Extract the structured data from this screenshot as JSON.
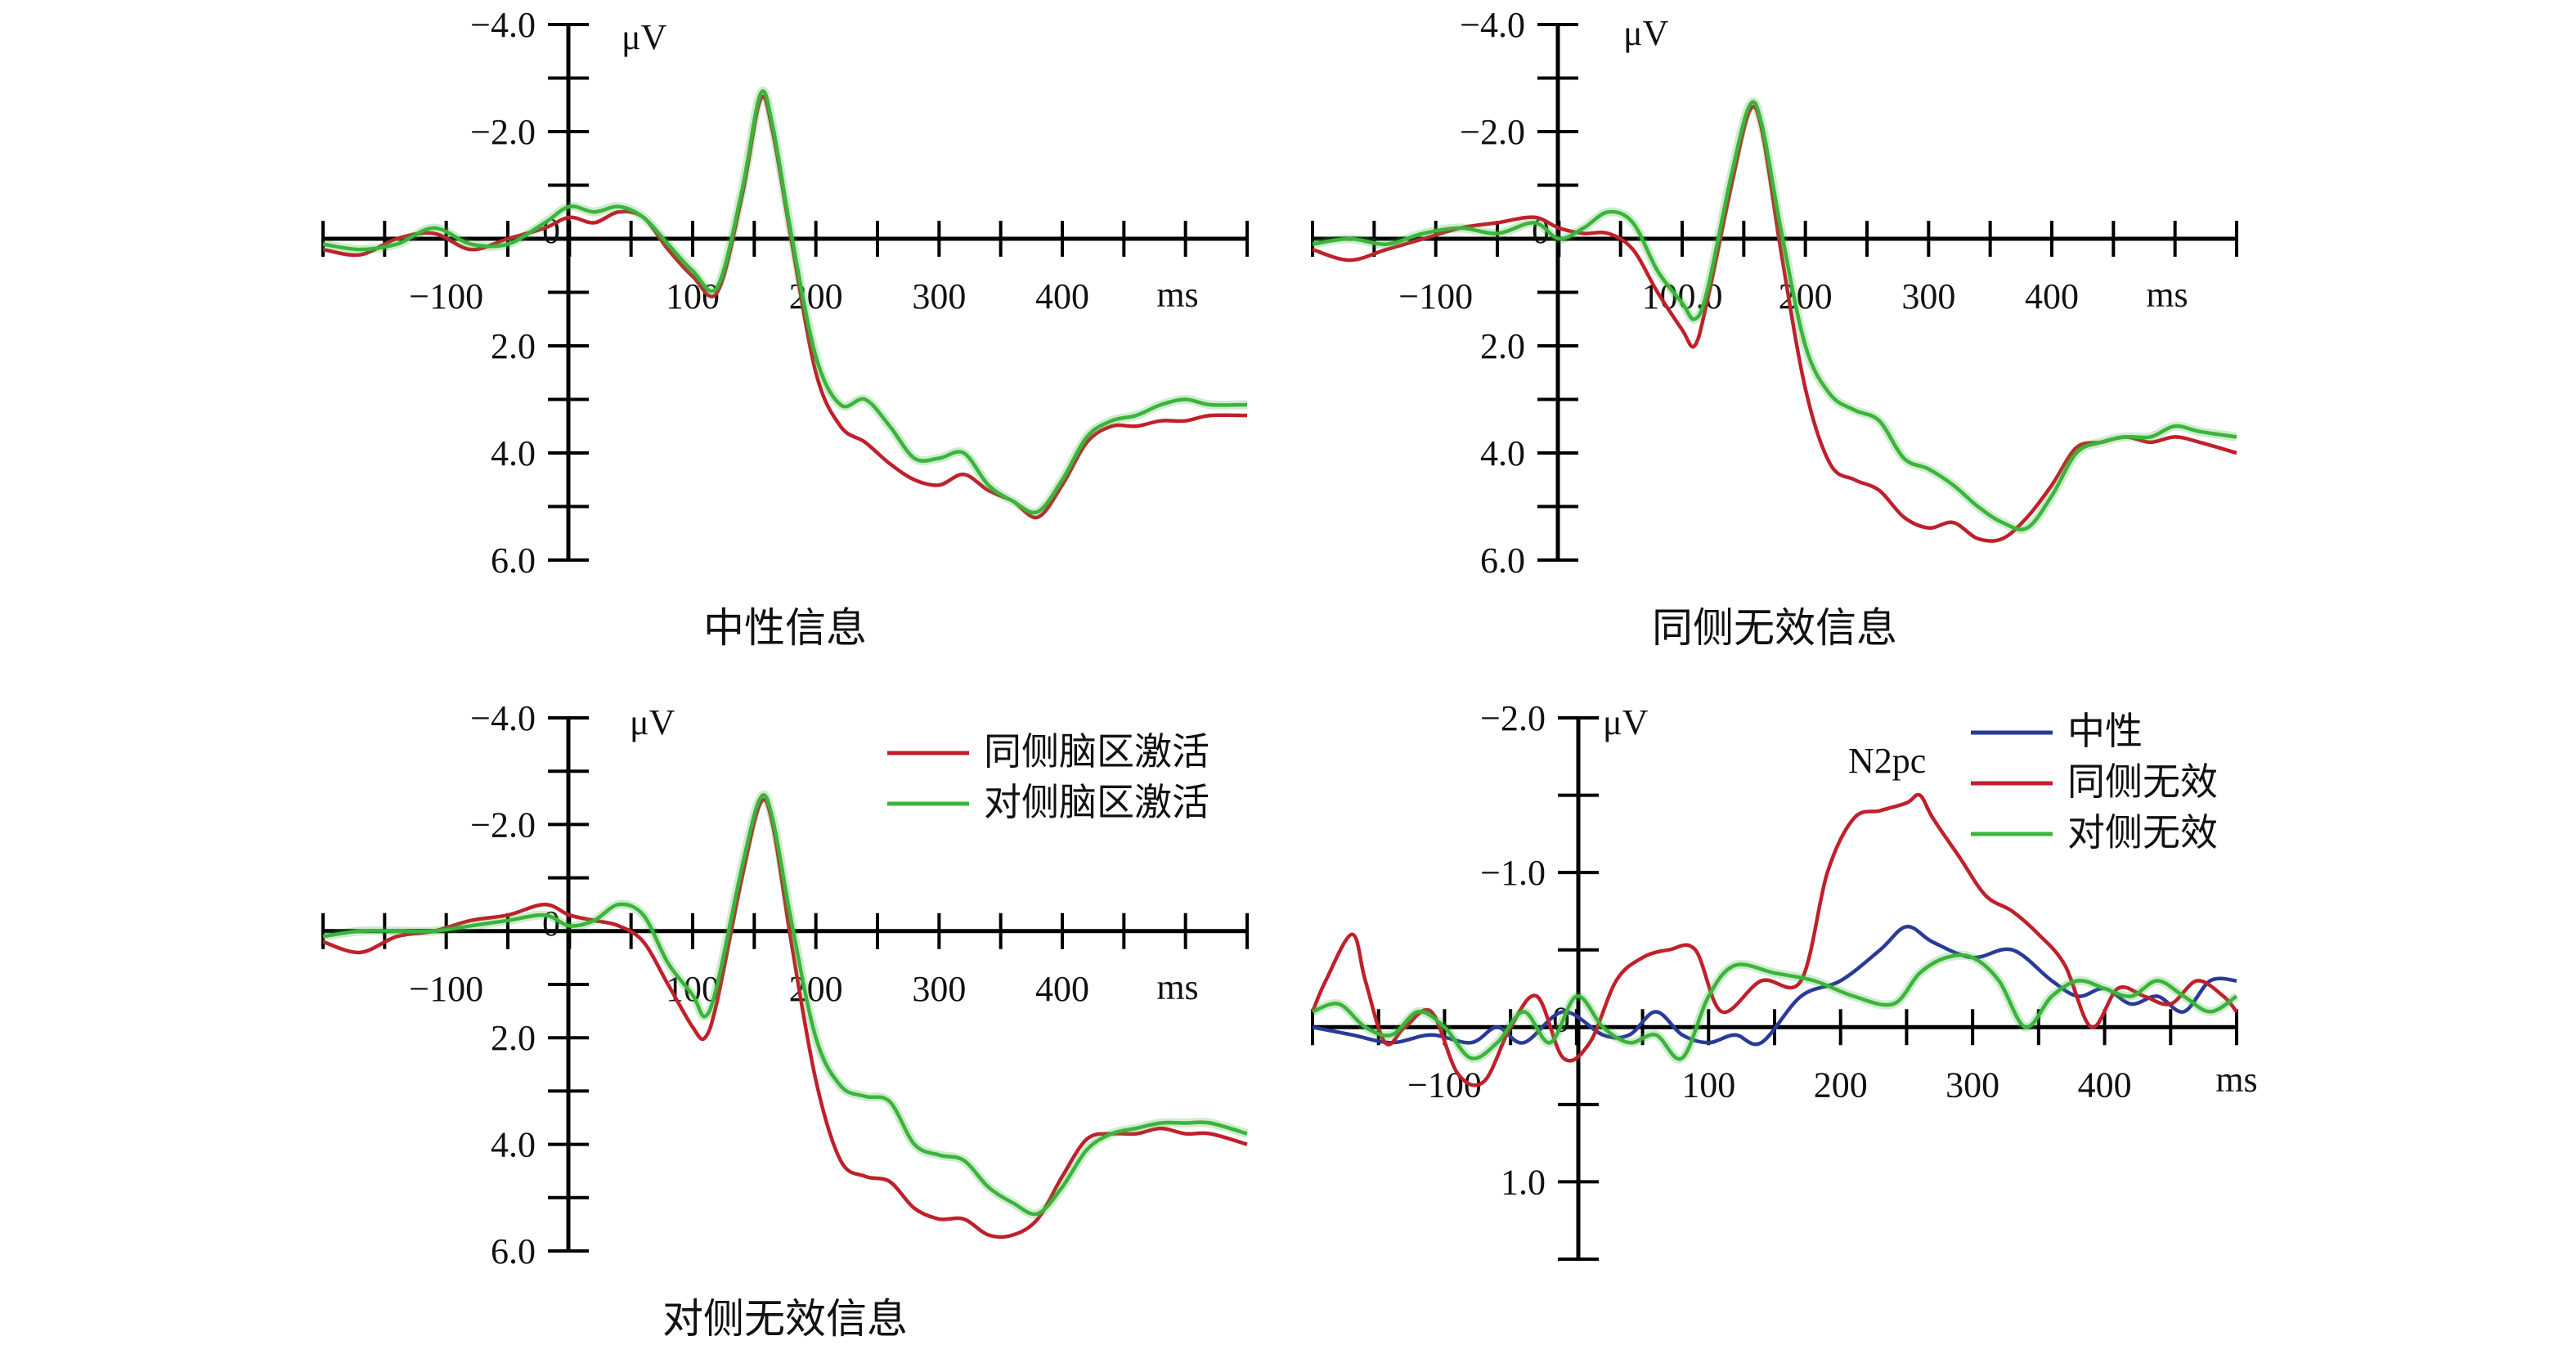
{
  "colors": {
    "ipsi": "#c0202a",
    "contra": "#3cb43c",
    "neutral": "#2a3a9a",
    "axis": "#000000"
  },
  "chart_data": [
    {
      "type": "line",
      "caption": "中性信息",
      "xunit": "ms",
      "yunit": "μV",
      "xlim": [
        -200,
        550
      ],
      "ylim": [
        -4.0,
        6.0
      ],
      "y_inverted": true,
      "xticks": [
        -100,
        100,
        200,
        300,
        400
      ],
      "xtick_labels": [
        "−100",
        "100",
        "200",
        "300",
        "400"
      ],
      "yticks": [
        -4.0,
        -2.0,
        0,
        2.0,
        4.0,
        6.0
      ],
      "ytick_labels": [
        "−4.0",
        "−2.0",
        "0",
        "2.0",
        "4.0",
        "6.0"
      ],
      "legend": null,
      "series": [
        {
          "color_key": "ipsi",
          "x": [
            -200,
            -170,
            -140,
            -110,
            -80,
            -50,
            -20,
            0,
            20,
            40,
            60,
            80,
            100,
            120,
            140,
            155,
            165,
            180,
            200,
            220,
            240,
            260,
            280,
            300,
            320,
            340,
            360,
            380,
            400,
            420,
            440,
            460,
            480,
            500,
            520,
            550
          ],
          "y": [
            0.2,
            0.3,
            0.0,
            -0.1,
            0.2,
            0.0,
            -0.2,
            -0.4,
            -0.3,
            -0.5,
            -0.4,
            0.2,
            0.7,
            1.0,
            -0.8,
            -2.6,
            -2.0,
            0.0,
            2.5,
            3.5,
            3.8,
            4.2,
            4.5,
            4.6,
            4.4,
            4.7,
            4.9,
            5.2,
            4.6,
            3.8,
            3.5,
            3.5,
            3.4,
            3.4,
            3.3,
            3.3
          ]
        },
        {
          "color_key": "contra",
          "x": [
            -200,
            -170,
            -140,
            -110,
            -80,
            -50,
            -20,
            0,
            20,
            40,
            60,
            80,
            100,
            120,
            140,
            155,
            165,
            180,
            200,
            220,
            240,
            260,
            280,
            300,
            320,
            340,
            360,
            380,
            400,
            420,
            440,
            460,
            480,
            500,
            520,
            550
          ],
          "y": [
            0.1,
            0.2,
            0.1,
            -0.2,
            0.1,
            0.1,
            -0.3,
            -0.6,
            -0.5,
            -0.6,
            -0.4,
            0.1,
            0.6,
            0.9,
            -0.9,
            -2.7,
            -2.1,
            -0.1,
            2.2,
            3.1,
            3.0,
            3.5,
            4.1,
            4.1,
            4.0,
            4.6,
            4.9,
            5.1,
            4.5,
            3.7,
            3.4,
            3.3,
            3.1,
            3.0,
            3.1,
            3.1
          ]
        }
      ]
    },
    {
      "type": "line",
      "caption": "同侧无效信息",
      "xunit": "ms",
      "yunit": "μV",
      "xlim": [
        -200,
        550
      ],
      "ylim": [
        -4.0,
        6.0
      ],
      "y_inverted": true,
      "xticks": [
        -100,
        100,
        200,
        300,
        400
      ],
      "xtick_labels": [
        "−100",
        "100.0",
        "200",
        "300",
        "400"
      ],
      "yticks": [
        -4.0,
        -2.0,
        0,
        2.0,
        4.0,
        6.0
      ],
      "ytick_labels": [
        "−4.0",
        "−2.0",
        "0",
        "2.0",
        "4.0",
        "6.0"
      ],
      "legend": null,
      "series": [
        {
          "color_key": "ipsi",
          "x": [
            -200,
            -170,
            -140,
            -110,
            -80,
            -50,
            -20,
            0,
            20,
            40,
            60,
            80,
            100,
            110,
            120,
            140,
            155,
            165,
            180,
            200,
            220,
            240,
            260,
            280,
            300,
            320,
            340,
            360,
            380,
            400,
            420,
            440,
            460,
            480,
            500,
            520,
            550
          ],
          "y": [
            0.2,
            0.4,
            0.2,
            0.0,
            -0.2,
            -0.3,
            -0.4,
            -0.2,
            -0.1,
            -0.1,
            0.2,
            1.0,
            1.7,
            2.0,
            1.2,
            -1.0,
            -2.4,
            -2.0,
            0.2,
            2.8,
            4.2,
            4.5,
            4.7,
            5.2,
            5.4,
            5.3,
            5.6,
            5.6,
            5.2,
            4.6,
            3.9,
            3.8,
            3.7,
            3.8,
            3.7,
            3.8,
            4.0
          ]
        },
        {
          "color_key": "contra",
          "x": [
            -200,
            -170,
            -140,
            -110,
            -80,
            -50,
            -20,
            0,
            20,
            40,
            60,
            80,
            100,
            110,
            120,
            140,
            155,
            165,
            180,
            200,
            220,
            240,
            260,
            280,
            300,
            320,
            340,
            360,
            380,
            400,
            420,
            440,
            460,
            480,
            500,
            520,
            550
          ],
          "y": [
            0.1,
            0.0,
            0.1,
            -0.1,
            -0.2,
            -0.1,
            -0.3,
            0.0,
            -0.2,
            -0.5,
            -0.3,
            0.6,
            1.2,
            1.5,
            1.0,
            -1.2,
            -2.5,
            -2.1,
            -0.2,
            2.0,
            2.9,
            3.2,
            3.4,
            4.1,
            4.3,
            4.6,
            5.0,
            5.3,
            5.4,
            4.8,
            4.0,
            3.8,
            3.7,
            3.7,
            3.5,
            3.6,
            3.7
          ]
        }
      ]
    },
    {
      "type": "line",
      "caption": "对侧无效信息",
      "xunit": "ms",
      "yunit": "μV",
      "xlim": [
        -200,
        550
      ],
      "ylim": [
        -4.0,
        6.0
      ],
      "y_inverted": true,
      "xticks": [
        -100,
        100,
        200,
        300,
        400
      ],
      "xtick_labels": [
        "−100",
        "100",
        "200",
        "300",
        "400"
      ],
      "yticks": [
        -4.0,
        -2.0,
        0,
        2.0,
        4.0,
        6.0
      ],
      "ytick_labels": [
        "−4.0",
        "−2.0",
        "0",
        "2.0",
        "4.0",
        "6.0"
      ],
      "legend": {
        "entries": [
          {
            "label": "同侧脑区激活",
            "color_key": "ipsi"
          },
          {
            "label": "对侧脑区激活",
            "color_key": "contra"
          }
        ]
      },
      "series": [
        {
          "color_key": "ipsi",
          "x": [
            -200,
            -170,
            -140,
            -110,
            -80,
            -50,
            -20,
            0,
            20,
            40,
            60,
            80,
            100,
            110,
            120,
            140,
            155,
            165,
            180,
            200,
            220,
            240,
            260,
            280,
            300,
            320,
            340,
            360,
            380,
            400,
            420,
            440,
            460,
            480,
            500,
            520,
            550
          ],
          "y": [
            0.2,
            0.4,
            0.1,
            0.0,
            -0.2,
            -0.3,
            -0.5,
            -0.3,
            -0.2,
            -0.1,
            0.2,
            1.0,
            1.8,
            2.0,
            1.3,
            -1.0,
            -2.4,
            -2.0,
            0.2,
            2.8,
            4.3,
            4.6,
            4.7,
            5.2,
            5.4,
            5.4,
            5.7,
            5.7,
            5.4,
            4.6,
            3.9,
            3.8,
            3.8,
            3.7,
            3.8,
            3.8,
            4.0
          ]
        },
        {
          "color_key": "contra",
          "x": [
            -200,
            -170,
            -140,
            -110,
            -80,
            -50,
            -20,
            0,
            20,
            40,
            60,
            80,
            100,
            110,
            120,
            140,
            155,
            165,
            180,
            200,
            220,
            240,
            260,
            280,
            300,
            320,
            340,
            360,
            380,
            400,
            420,
            440,
            460,
            480,
            500,
            520,
            550
          ],
          "y": [
            0.1,
            0.0,
            0.0,
            0.0,
            -0.1,
            -0.2,
            -0.3,
            -0.1,
            -0.2,
            -0.5,
            -0.3,
            0.6,
            1.2,
            1.6,
            1.0,
            -1.2,
            -2.5,
            -2.1,
            -0.2,
            2.0,
            2.9,
            3.1,
            3.2,
            4.0,
            4.2,
            4.3,
            4.8,
            5.1,
            5.3,
            4.8,
            4.1,
            3.8,
            3.7,
            3.6,
            3.6,
            3.6,
            3.8
          ]
        }
      ]
    },
    {
      "type": "line",
      "caption": "",
      "annotation": "N2pc",
      "xunit": "ms",
      "yunit": "μV",
      "xlim": [
        -200,
        500
      ],
      "ylim": [
        -2.0,
        1.5
      ],
      "y_inverted": true,
      "xticks": [
        -100,
        100,
        200,
        300,
        400
      ],
      "xtick_labels": [
        "−100",
        "100",
        "200",
        "300",
        "400"
      ],
      "yticks": [
        -2.0,
        -1.0,
        0,
        1.0
      ],
      "ytick_labels": [
        "−2.0",
        "−1.0",
        "0",
        "1.0"
      ],
      "legend": {
        "entries": [
          {
            "label": "中性",
            "color_key": "neutral"
          },
          {
            "label": "同侧无效",
            "color_key": "ipsi"
          },
          {
            "label": "对侧无效",
            "color_key": "contra"
          }
        ]
      },
      "series": [
        {
          "color_key": "neutral",
          "x": [
            -200,
            -170,
            -140,
            -110,
            -80,
            -60,
            -40,
            -10,
            20,
            40,
            60,
            80,
            100,
            120,
            140,
            170,
            200,
            230,
            250,
            270,
            300,
            330,
            360,
            380,
            400,
            420,
            440,
            460,
            480,
            500
          ],
          "y": [
            0.0,
            0.05,
            0.1,
            0.05,
            0.1,
            0.0,
            0.1,
            -0.1,
            0.05,
            0.05,
            -0.1,
            0.05,
            0.1,
            0.05,
            0.1,
            -0.2,
            -0.3,
            -0.5,
            -0.65,
            -0.55,
            -0.45,
            -0.5,
            -0.3,
            -0.2,
            -0.25,
            -0.15,
            -0.2,
            -0.1,
            -0.3,
            -0.3
          ]
        },
        {
          "color_key": "ipsi",
          "x": [
            -200,
            -190,
            -170,
            -160,
            -145,
            -130,
            -110,
            -90,
            -70,
            -50,
            -30,
            -10,
            10,
            30,
            50,
            70,
            90,
            110,
            140,
            170,
            190,
            210,
            230,
            250,
            260,
            270,
            290,
            310,
            330,
            350,
            370,
            390,
            410,
            430,
            450,
            470,
            490,
            500
          ],
          "y": [
            -0.1,
            -0.3,
            -0.6,
            -0.3,
            0.1,
            0.0,
            -0.1,
            0.3,
            0.35,
            0.0,
            -0.2,
            0.2,
            0.1,
            -0.3,
            -0.45,
            -0.5,
            -0.5,
            -0.1,
            -0.3,
            -0.3,
            -1.0,
            -1.35,
            -1.4,
            -1.45,
            -1.5,
            -1.35,
            -1.1,
            -0.85,
            -0.75,
            -0.6,
            -0.4,
            0.0,
            -0.25,
            -0.2,
            -0.15,
            -0.3,
            -0.2,
            -0.1
          ]
        },
        {
          "color_key": "contra",
          "x": [
            -200,
            -180,
            -160,
            -140,
            -120,
            -100,
            -80,
            -60,
            -40,
            -20,
            0,
            20,
            40,
            60,
            80,
            100,
            120,
            150,
            180,
            210,
            240,
            260,
            280,
            300,
            320,
            340,
            360,
            380,
            400,
            420,
            440,
            460,
            480,
            500
          ],
          "y": [
            -0.1,
            -0.15,
            0.0,
            0.05,
            -0.1,
            0.0,
            0.2,
            0.1,
            -0.1,
            0.1,
            -0.2,
            0.0,
            0.1,
            0.05,
            0.2,
            -0.2,
            -0.4,
            -0.35,
            -0.3,
            -0.2,
            -0.15,
            -0.35,
            -0.45,
            -0.45,
            -0.3,
            0.0,
            -0.2,
            -0.3,
            -0.25,
            -0.2,
            -0.3,
            -0.2,
            -0.1,
            -0.2
          ]
        }
      ]
    }
  ]
}
